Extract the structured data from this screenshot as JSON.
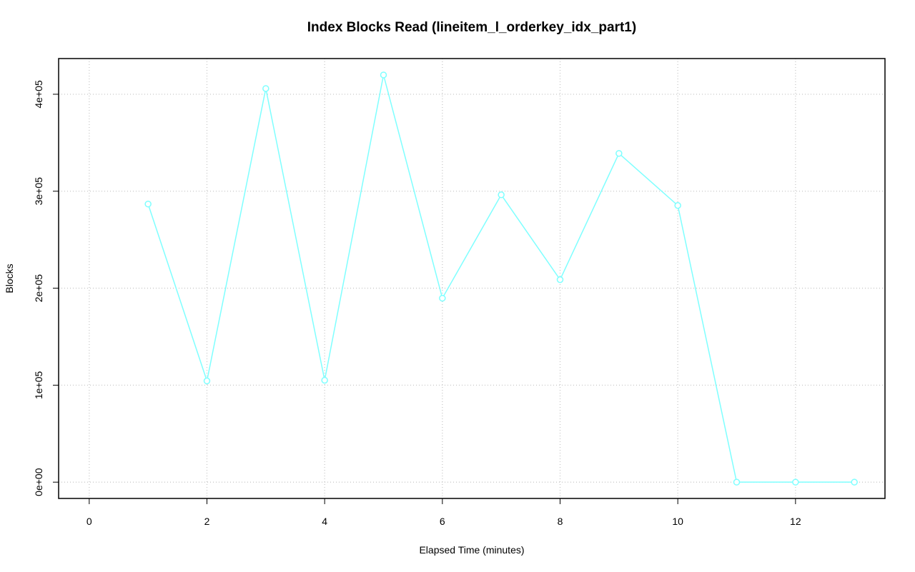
{
  "chart_data": {
    "type": "line",
    "title": "Index Blocks Read (lineitem_l_orderkey_idx_part1)",
    "x_label": "Elapsed Time (minutes)",
    "y_label": "Blocks",
    "x": [
      1,
      2,
      3,
      4,
      5,
      6,
      7,
      8,
      9,
      10,
      11,
      12,
      13
    ],
    "series": [
      {
        "color": "#7fffff",
        "values": [
          286800,
          104400,
          405900,
          105100,
          419900,
          189700,
          296300,
          208800,
          339000,
          285300,
          0,
          0,
          0
        ]
      }
    ],
    "xlim": [
      -0.52,
      13.52
    ],
    "xticks": [
      0,
      2,
      4,
      6,
      8,
      10,
      12
    ],
    "ylim": [
      -16800,
      436800
    ],
    "yticks": [
      {
        "value": 0,
        "label": "0e+00"
      },
      {
        "value": 100000,
        "label": "1e+05"
      },
      {
        "value": 200000,
        "label": "2e+05"
      },
      {
        "value": 300000,
        "label": "3e+05"
      },
      {
        "value": 400000,
        "label": "4e+05"
      }
    ],
    "grid": true
  }
}
